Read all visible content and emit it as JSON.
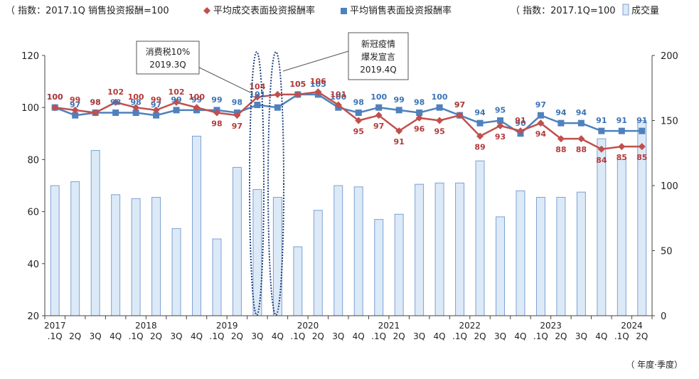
{
  "legend": {
    "left_note": "（ 指数：2017.1Q 销售投资报酬=100",
    "red_series": "平均成交表面投资报酬率",
    "blue_series": "平均销售表面投资报酬率",
    "right_note": "（ 指数：2017.1Q=100",
    "bar_series": "成交量"
  },
  "unit_label": "（ 年度·季度）",
  "callouts": {
    "tax_line1": "消费税10%",
    "tax_line2": "2019.3Q",
    "covid_line1": "新冠疫情",
    "covid_line2": "爆发宣言",
    "covid_line3": "2019.4Q"
  },
  "colors": {
    "red": "#c0504d",
    "blue": "#4f81bd",
    "bar_fill": "#dce9f7",
    "bar_stroke": "#7da1d3",
    "oval": "#1f3f7a"
  },
  "chart_data": {
    "type": "bar",
    "quarters": [
      "1Q",
      "2Q",
      "3Q",
      "4Q",
      "1Q",
      "2Q",
      "3Q",
      "4Q",
      "1Q",
      "2Q",
      "3Q",
      "4Q",
      "1Q",
      "2Q",
      "3Q",
      "4Q",
      "1Q",
      "2Q",
      "3Q",
      "4Q",
      "1Q",
      "2Q",
      "3Q",
      "4Q",
      "1Q",
      "2Q",
      "3Q",
      "4Q",
      "1Q",
      "2Q"
    ],
    "x_labels": [
      ".1Q",
      "2Q",
      "3Q",
      "4Q",
      ".1Q",
      "2Q",
      "3Q",
      "4Q",
      ".1Q",
      "2Q",
      "3Q",
      "4Q",
      ".1Q",
      "2Q",
      "3Q",
      "4Q",
      ".1Q",
      "2Q",
      "3Q",
      "4Q",
      ".1Q",
      "2Q",
      "3Q",
      "4Q",
      ".1Q",
      "2Q",
      "3Q",
      "4Q",
      ".1Q",
      "2Q"
    ],
    "years": [
      {
        "label": "2017",
        "index": 0
      },
      {
        "label": "2018",
        "index": 4
      },
      {
        "label": "2019",
        "index": 8
      },
      {
        "label": "2020",
        "index": 12
      },
      {
        "label": "2021",
        "index": 16
      },
      {
        "label": "2022",
        "index": 20
      },
      {
        "label": "2023",
        "index": 24
      },
      {
        "label": "2024",
        "index": 28
      }
    ],
    "left_axis": {
      "ylim": [
        20,
        120
      ],
      "ticks": [
        20,
        40,
        60,
        80,
        100,
        120
      ]
    },
    "right_axis": {
      "ylim": [
        0,
        200
      ],
      "ticks": [
        0,
        50,
        100,
        150,
        200
      ]
    },
    "bars": {
      "name": "成交量",
      "axis": "right",
      "values": [
        100,
        103,
        127,
        93,
        90,
        91,
        67,
        138,
        59,
        114,
        97,
        91,
        53,
        81,
        100,
        99,
        74,
        78,
        101,
        102,
        102,
        119,
        76,
        96,
        91,
        91,
        95,
        136,
        120,
        150
      ]
    },
    "series": [
      {
        "name": "平均销售表面投资报酬率",
        "axis": "left",
        "values": [
          100,
          97,
          98,
          98,
          98,
          97,
          99,
          99,
          99,
          98,
          101,
          100,
          105,
          105,
          100,
          98,
          100,
          99,
          98,
          100,
          97,
          94,
          95,
          90,
          97,
          94,
          94,
          91,
          91,
          91
        ],
        "labels": [
          "100",
          "97",
          "98",
          "98",
          "98",
          "97",
          "99",
          "99",
          "99",
          "98",
          "101",
          "",
          "105",
          "105",
          "100",
          "98",
          "100",
          "99",
          "98",
          "100",
          "97",
          "94",
          "95",
          "90",
          "97",
          "94",
          "94",
          "91",
          "91",
          "91"
        ]
      },
      {
        "name": "平均成交表面投资报酬率",
        "axis": "left",
        "values": [
          100,
          99,
          98,
          102,
          100,
          99,
          102,
          100,
          98,
          97,
          104,
          105,
          105,
          106,
          101,
          95,
          97,
          91,
          96,
          95,
          97,
          89,
          93,
          91,
          94,
          88,
          88,
          84,
          85,
          85
        ],
        "labels": [
          "100",
          "99",
          "98",
          "102",
          "100",
          "99",
          "102",
          "100",
          "98",
          "97",
          "104",
          "",
          "105",
          "106",
          "101",
          "95",
          "97",
          "91",
          "96",
          "95",
          "97",
          "89",
          "93",
          "91",
          "94",
          "88",
          "88",
          "84",
          "85",
          "85"
        ]
      }
    ]
  }
}
